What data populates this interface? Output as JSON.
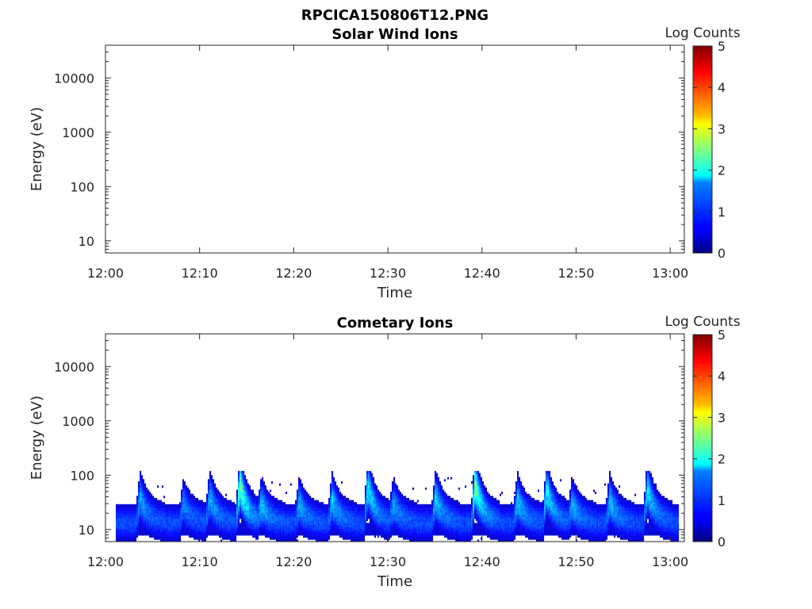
{
  "figure": {
    "filename": "RPCICA150806T12.PNG"
  },
  "colormap": "jet",
  "chart_data": [
    {
      "type": "heatmap",
      "title": "Solar Wind Ions",
      "xlabel": "Time",
      "ylabel": "Energy (eV)",
      "x_ticks": [
        "12:00",
        "12:10",
        "12:20",
        "12:30",
        "12:40",
        "12:50",
        "13:00"
      ],
      "xlim_minutes": [
        0,
        61.5
      ],
      "y_scale": "log",
      "y_ticks": [
        10,
        100,
        1000,
        10000
      ],
      "y_tick_labels": [
        "10",
        "100",
        "1000",
        "10000"
      ],
      "ylim": [
        6,
        40000
      ],
      "colorbar": {
        "label": "Log Counts",
        "range": [
          0,
          5
        ],
        "ticks": [
          "0",
          "1",
          "2",
          "3",
          "4",
          "5"
        ]
      },
      "data_present": false,
      "bursts": []
    },
    {
      "type": "heatmap",
      "title": "Cometary Ions",
      "xlabel": "Time",
      "ylabel": "Energy (eV)",
      "x_ticks": [
        "12:00",
        "12:10",
        "12:20",
        "12:30",
        "12:40",
        "12:50",
        "13:00"
      ],
      "xlim_minutes": [
        0,
        61.5
      ],
      "y_scale": "log",
      "y_ticks": [
        10,
        100,
        1000,
        10000
      ],
      "y_tick_labels": [
        "10",
        "100",
        "1000",
        "10000"
      ],
      "ylim": [
        6,
        40000
      ],
      "colorbar": {
        "label": "Log Counts",
        "range": [
          0,
          5
        ],
        "ticks": [
          "0",
          "1",
          "2",
          "3",
          "4",
          "5"
        ]
      },
      "data_present": true,
      "time_range_minutes": [
        1.1,
        60.8
      ],
      "baseline": {
        "energy_low_eV": 8,
        "energy_high_eV": 22,
        "log_counts": 0.9
      },
      "bursts": [
        {
          "t_minutes": 3.6,
          "peak_energy_eV": 40,
          "log_counts": 1.4
        },
        {
          "t_minutes": 8.2,
          "peak_energy_eV": 30,
          "log_counts": 1.2
        },
        {
          "t_minutes": 11.0,
          "peak_energy_eV": 40,
          "log_counts": 1.5
        },
        {
          "t_minutes": 14.2,
          "peak_energy_eV": 70,
          "log_counts": 2.6
        },
        {
          "t_minutes": 16.5,
          "peak_energy_eV": 30,
          "log_counts": 1.6
        },
        {
          "t_minutes": 20.5,
          "peak_energy_eV": 30,
          "log_counts": 1.5
        },
        {
          "t_minutes": 24.0,
          "peak_energy_eV": 35,
          "log_counts": 1.6
        },
        {
          "t_minutes": 27.8,
          "peak_energy_eV": 65,
          "log_counts": 1.9
        },
        {
          "t_minutes": 30.5,
          "peak_energy_eV": 30,
          "log_counts": 1.4
        },
        {
          "t_minutes": 35.0,
          "peak_energy_eV": 40,
          "log_counts": 1.7
        },
        {
          "t_minutes": 39.2,
          "peak_energy_eV": 70,
          "log_counts": 2.5
        },
        {
          "t_minutes": 43.7,
          "peak_energy_eV": 35,
          "log_counts": 1.6
        },
        {
          "t_minutes": 46.8,
          "peak_energy_eV": 55,
          "log_counts": 1.9
        },
        {
          "t_minutes": 49.5,
          "peak_energy_eV": 30,
          "log_counts": 1.5
        },
        {
          "t_minutes": 53.5,
          "peak_energy_eV": 35,
          "log_counts": 1.6
        },
        {
          "t_minutes": 57.5,
          "peak_energy_eV": 60,
          "log_counts": 1.8
        }
      ]
    }
  ]
}
